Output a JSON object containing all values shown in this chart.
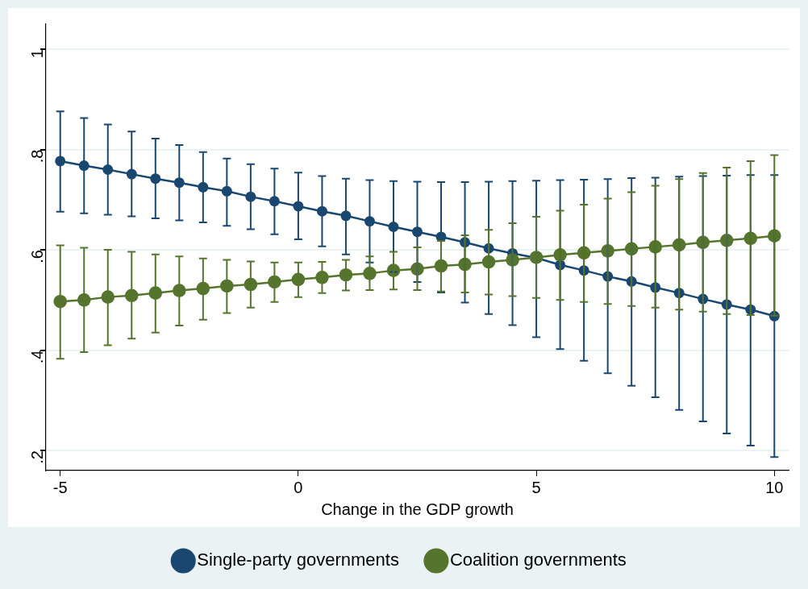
{
  "chart_data": {
    "type": "line",
    "xlabel": "Change in the GDP growth",
    "x": [
      -5,
      -4.5,
      -4,
      -3.5,
      -3,
      -2.5,
      -2,
      -1.5,
      -1,
      -0.5,
      0,
      0.5,
      1,
      1.5,
      2,
      2.5,
      3,
      3.5,
      4,
      4.5,
      5,
      5.5,
      6,
      6.5,
      7,
      7.5,
      8,
      8.5,
      9,
      9.5,
      10
    ],
    "series": [
      {
        "name": "Single-party governments",
        "color": "#1a476f",
        "values": [
          0.777,
          0.768,
          0.76,
          0.751,
          0.742,
          0.734,
          0.725,
          0.717,
          0.706,
          0.697,
          0.687,
          0.677,
          0.668,
          0.657,
          0.646,
          0.636,
          0.626,
          0.615,
          0.603,
          0.593,
          0.584,
          0.57,
          0.559,
          0.547,
          0.537,
          0.525,
          0.514,
          0.502,
          0.491,
          0.481,
          0.468
        ],
        "errors": [
          [
            0.676,
            0.876
          ],
          [
            0.673,
            0.863
          ],
          [
            0.67,
            0.85
          ],
          [
            0.667,
            0.836
          ],
          [
            0.663,
            0.822
          ],
          [
            0.659,
            0.809
          ],
          [
            0.655,
            0.795
          ],
          [
            0.648,
            0.782
          ],
          [
            0.641,
            0.771
          ],
          [
            0.631,
            0.762
          ],
          [
            0.621,
            0.754
          ],
          [
            0.607,
            0.747
          ],
          [
            0.591,
            0.742
          ],
          [
            0.575,
            0.739
          ],
          [
            0.556,
            0.737
          ],
          [
            0.536,
            0.736
          ],
          [
            0.515,
            0.735
          ],
          [
            0.495,
            0.735
          ],
          [
            0.472,
            0.736
          ],
          [
            0.45,
            0.737
          ],
          [
            0.426,
            0.738
          ],
          [
            0.402,
            0.739
          ],
          [
            0.379,
            0.74
          ],
          [
            0.354,
            0.741
          ],
          [
            0.329,
            0.743
          ],
          [
            0.306,
            0.744
          ],
          [
            0.281,
            0.746
          ],
          [
            0.258,
            0.747
          ],
          [
            0.234,
            0.748
          ],
          [
            0.21,
            0.749
          ],
          [
            0.187,
            0.749
          ]
        ]
      },
      {
        "name": "Coalition governments",
        "color": "#55752f",
        "values": [
          0.497,
          0.5,
          0.506,
          0.509,
          0.514,
          0.519,
          0.523,
          0.528,
          0.531,
          0.536,
          0.541,
          0.545,
          0.55,
          0.553,
          0.559,
          0.562,
          0.568,
          0.571,
          0.576,
          0.58,
          0.585,
          0.59,
          0.594,
          0.598,
          0.602,
          0.606,
          0.61,
          0.615,
          0.619,
          0.623,
          0.628
        ],
        "errors": [
          [
            0.383,
            0.609
          ],
          [
            0.396,
            0.604
          ],
          [
            0.41,
            0.6
          ],
          [
            0.423,
            0.596
          ],
          [
            0.435,
            0.591
          ],
          [
            0.449,
            0.587
          ],
          [
            0.461,
            0.583
          ],
          [
            0.474,
            0.58
          ],
          [
            0.485,
            0.577
          ],
          [
            0.496,
            0.575
          ],
          [
            0.506,
            0.575
          ],
          [
            0.514,
            0.576
          ],
          [
            0.519,
            0.58
          ],
          [
            0.52,
            0.587
          ],
          [
            0.521,
            0.596
          ],
          [
            0.52,
            0.605
          ],
          [
            0.517,
            0.618
          ],
          [
            0.515,
            0.629
          ],
          [
            0.511,
            0.64
          ],
          [
            0.508,
            0.653
          ],
          [
            0.504,
            0.666
          ],
          [
            0.5,
            0.678
          ],
          [
            0.496,
            0.69
          ],
          [
            0.492,
            0.702
          ],
          [
            0.488,
            0.715
          ],
          [
            0.485,
            0.728
          ],
          [
            0.481,
            0.741
          ],
          [
            0.477,
            0.753
          ],
          [
            0.472,
            0.764
          ],
          [
            0.47,
            0.777
          ],
          [
            0.469,
            0.789
          ]
        ]
      }
    ],
    "xlim": [
      -5.3,
      10.3
    ],
    "xticks": [
      -5,
      0,
      5,
      10
    ],
    "ylim": [
      0.16,
      1.05
    ],
    "yticks": [
      {
        "value": 0.2,
        "label": ".2"
      },
      {
        "value": 0.4,
        "label": ".4"
      },
      {
        "value": 0.6,
        "label": ".6"
      },
      {
        "value": 0.8,
        "label": ".8"
      },
      1
    ],
    "grid": "y",
    "legend": "bottom",
    "marker": "circle",
    "line_style": "solid"
  }
}
